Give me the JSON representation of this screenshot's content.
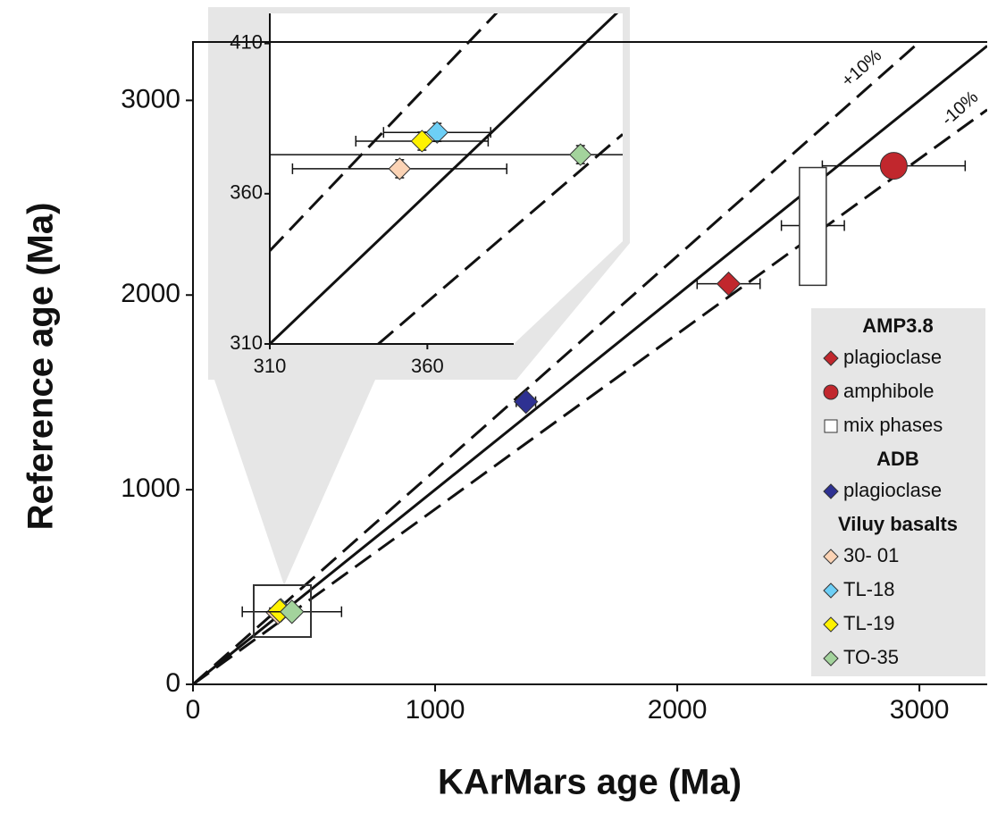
{
  "chart_data": [
    {
      "type": "scatter",
      "xlabel": "KArMars age (Ma)",
      "ylabel": "Reference age (Ma)",
      "xlim": [
        0,
        3280
      ],
      "ylim": [
        0,
        3300
      ],
      "xticks": [
        0,
        1000,
        2000,
        3000
      ],
      "yticks": [
        0,
        1000,
        2000,
        3000
      ],
      "lines": [
        {
          "slope": 1,
          "dashed": false
        },
        {
          "slope": 1.1,
          "dashed": true,
          "label": "+10%"
        },
        {
          "slope": 0.9,
          "dashed": true,
          "label": "-10%"
        }
      ],
      "groups": [
        "AMP3.8",
        "ADB",
        "Viluy basalts"
      ],
      "series": [
        {
          "name": "plagioclase",
          "group": 0,
          "marker": "diamond",
          "color": "#c1272d",
          "x": [
            2212
          ],
          "values": [
            2058
          ],
          "xerr": [
            130
          ],
          "yerr": [
            null
          ]
        },
        {
          "name": "amphibole",
          "group": 0,
          "marker": "circle",
          "color": "#c1272d",
          "x": [
            2894
          ],
          "values": [
            2664
          ],
          "xerr": [
            295
          ],
          "yerr": [
            null
          ]
        },
        {
          "name": "mix phases",
          "group": 0,
          "marker": "box",
          "color": "#ffffff",
          "x": [
            2560
          ],
          "values": [
            [
              2050,
              2655
            ]
          ],
          "xerr": [
            130
          ],
          "yerr": [
            null
          ],
          "bar_y": [
            2357
          ]
        },
        {
          "name": "plagioclase",
          "group": 1,
          "marker": "diamond",
          "color": "#2e3192",
          "x": [
            1375
          ],
          "values": [
            1452
          ],
          "xerr": [
            40
          ],
          "yerr": [
            null
          ]
        },
        {
          "name": "30- 01",
          "group": 2,
          "marker": "diamond",
          "color": "#fbd3b5",
          "x": [
            351.2
          ],
          "values": [
            368.3
          ],
          "xerr": [
            34
          ],
          "yerr": [
            3
          ]
        },
        {
          "name": "TL-18",
          "group": 2,
          "marker": "diamond",
          "color": "#6dcff6",
          "x": [
            363.1
          ],
          "values": [
            380.4
          ],
          "xerr": [
            17
          ],
          "yerr": [
            3
          ]
        },
        {
          "name": "TL-19",
          "group": 2,
          "marker": "diamond",
          "color": "#fff200",
          "x": [
            358.3
          ],
          "values": [
            377.5
          ],
          "xerr": [
            21
          ],
          "yerr": [
            3
          ]
        },
        {
          "name": "TO-35",
          "group": 2,
          "marker": "diamond",
          "color": "#a3d39c",
          "x": [
            408.6
          ],
          "values": [
            373
          ],
          "xerr": [
            205
          ],
          "yerr": [
            3
          ]
        }
      ]
    },
    {
      "type": "inset",
      "xlim": [
        310,
        422
      ],
      "ylim": [
        310,
        420
      ],
      "xticks": [
        310,
        360
      ],
      "yticks": [
        310,
        360,
        410
      ],
      "group": 2
    }
  ]
}
